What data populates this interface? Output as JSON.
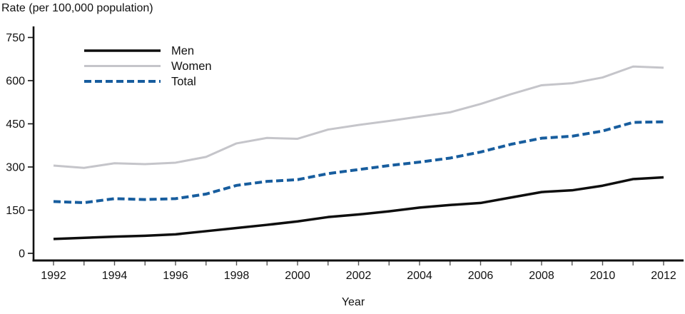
{
  "chart_data": {
    "type": "line",
    "title": "Rate (per 100,000 population)",
    "xlabel": "Year",
    "ylabel": "",
    "x": [
      1992,
      1993,
      1994,
      1995,
      1996,
      1997,
      1998,
      1999,
      2000,
      2001,
      2002,
      2003,
      2004,
      2005,
      2006,
      2007,
      2008,
      2009,
      2010,
      2011,
      2012
    ],
    "series": [
      {
        "name": "Men",
        "color": "#0e0e0e",
        "style": "solid",
        "width": 3.5,
        "values": [
          50,
          54,
          58,
          61,
          66,
          77,
          88,
          99,
          111,
          126,
          135,
          146,
          159,
          168,
          175,
          194,
          213,
          219,
          235,
          258,
          264
        ]
      },
      {
        "name": "Women",
        "color": "#c5c5ca",
        "style": "solid",
        "width": 3,
        "values": [
          305,
          297,
          313,
          310,
          315,
          335,
          382,
          401,
          398,
          430,
          446,
          460,
          475,
          490,
          519,
          553,
          584,
          591,
          611,
          649,
          645
        ]
      },
      {
        "name": "Total",
        "color": "#175d9e",
        "style": "dashed",
        "width": 4,
        "values": [
          180,
          176,
          190,
          187,
          190,
          206,
          236,
          250,
          256,
          277,
          291,
          305,
          317,
          331,
          352,
          379,
          400,
          407,
          425,
          455,
          457
        ]
      }
    ],
    "ylim": [
      0,
      750
    ],
    "yticks": [
      0,
      150,
      300,
      450,
      600,
      750
    ],
    "xticks_labeled": [
      1992,
      1994,
      1996,
      1998,
      2000,
      2002,
      2004,
      2006,
      2008,
      2010,
      2012
    ],
    "xticks_minor_every": 1,
    "grid": false,
    "legend_position": "top-left-inside",
    "axis_color": "#111111"
  }
}
